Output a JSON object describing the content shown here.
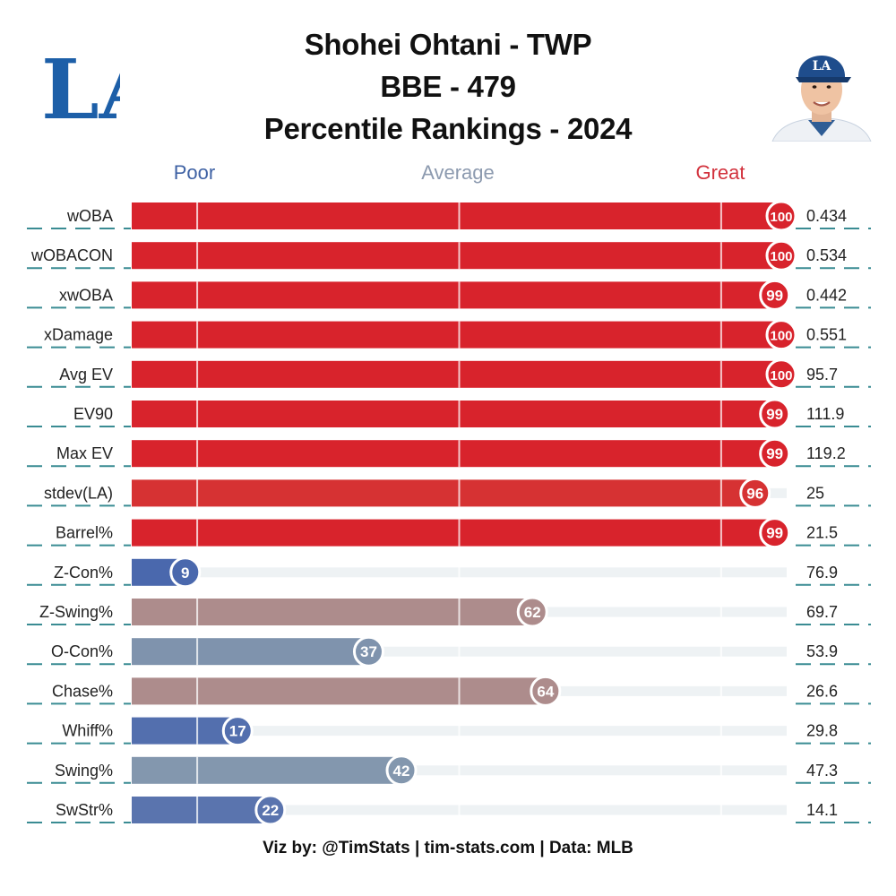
{
  "header": {
    "title": "Shohei Ohtani - TWP",
    "subtitle": "BBE - 479",
    "subtitle2": "Percentile Rankings - 2024"
  },
  "team_logo": {
    "text": "LA",
    "color": "#1d5fa8"
  },
  "player_photo": {
    "cap_letters": "LA"
  },
  "footer": "Viz by: @TimStats | tim-stats.com | Data: MLB",
  "colors": {
    "great": "#d8232c",
    "average": "#8292ab",
    "poor": "#4a68ad",
    "track": "#eef2f4",
    "dash": "#3a8c93"
  },
  "chart_data": {
    "type": "bar",
    "orientation": "horizontal",
    "xlim": [
      0,
      100
    ],
    "scale_labels": {
      "poor": "Poor",
      "average": "Average",
      "great": "Great"
    },
    "scale_colors": {
      "poor": "#3f62a4",
      "average": "#8c9aaf",
      "great": "#d2323d"
    },
    "gridlines": [
      10,
      50,
      90
    ],
    "metrics": [
      {
        "label": "wOBA",
        "percentile": 100,
        "value": "0.434",
        "color": "#d8232c"
      },
      {
        "label": "wOBACON",
        "percentile": 100,
        "value": "0.534",
        "color": "#d8232c"
      },
      {
        "label": "xwOBA",
        "percentile": 99,
        "value": "0.442",
        "color": "#d8232c"
      },
      {
        "label": "xDamage",
        "percentile": 100,
        "value": "0.551",
        "color": "#d8232c"
      },
      {
        "label": "Avg EV",
        "percentile": 100,
        "value": "95.7",
        "color": "#d8232c"
      },
      {
        "label": "EV90",
        "percentile": 99,
        "value": "111.9",
        "color": "#d8232c"
      },
      {
        "label": "Max EV",
        "percentile": 99,
        "value": "119.2",
        "color": "#d8232c"
      },
      {
        "label": "stdev(LA)",
        "percentile": 96,
        "value": "25",
        "color": "#d63233"
      },
      {
        "label": "Barrel%",
        "percentile": 99,
        "value": "21.5",
        "color": "#d8232c"
      },
      {
        "label": "Z-Con%",
        "percentile": 9,
        "value": "76.9",
        "color": "#4a68ad"
      },
      {
        "label": "Z-Swing%",
        "percentile": 62,
        "value": "69.7",
        "color": "#ad8c8c"
      },
      {
        "label": "O-Con%",
        "percentile": 37,
        "value": "53.9",
        "color": "#7f93ad"
      },
      {
        "label": "Chase%",
        "percentile": 64,
        "value": "26.6",
        "color": "#ad8c8c"
      },
      {
        "label": "Whiff%",
        "percentile": 17,
        "value": "29.8",
        "color": "#536fae"
      },
      {
        "label": "Swing%",
        "percentile": 42,
        "value": "47.3",
        "color": "#8397ae"
      },
      {
        "label": "SwStr%",
        "percentile": 22,
        "value": "14.1",
        "color": "#5a74ae"
      }
    ]
  }
}
